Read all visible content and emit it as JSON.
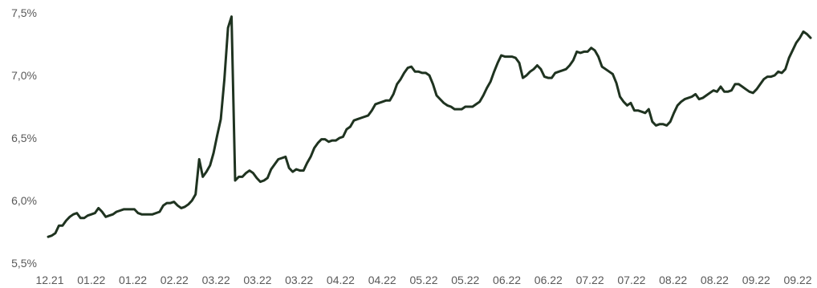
{
  "chart_data": {
    "type": "line",
    "title": "",
    "xlabel": "",
    "ylabel": "",
    "ylim": [
      5.5,
      7.5
    ],
    "y_ticks": [
      {
        "value": 5.5,
        "label": "5,5%"
      },
      {
        "value": 6.0,
        "label": "6,0%"
      },
      {
        "value": 6.5,
        "label": "6,5%"
      },
      {
        "value": 7.0,
        "label": "7,0%"
      },
      {
        "value": 7.5,
        "label": "7,5%"
      }
    ],
    "x_tick_labels": [
      "12.21",
      "01.22",
      "01.22",
      "02.22",
      "03.22",
      "03.22",
      "03.22",
      "04.22",
      "04.22",
      "05.22",
      "05.22",
      "06.22",
      "06.22",
      "07.22",
      "07.22",
      "08.22",
      "08.22",
      "09.22",
      "09.22"
    ],
    "grid": false,
    "legend": "none",
    "line_color": "#1f3320",
    "series": [
      {
        "values": [
          5.71,
          5.72,
          5.74,
          5.8,
          5.8,
          5.84,
          5.87,
          5.89,
          5.9,
          5.86,
          5.86,
          5.88,
          5.89,
          5.9,
          5.94,
          5.91,
          5.87,
          5.88,
          5.89,
          5.91,
          5.92,
          5.93,
          5.93,
          5.93,
          5.93,
          5.9,
          5.89,
          5.89,
          5.89,
          5.89,
          5.9,
          5.91,
          5.96,
          5.98,
          5.98,
          5.99,
          5.96,
          5.94,
          5.95,
          5.97,
          6.0,
          6.05,
          6.33,
          6.19,
          6.23,
          6.28,
          6.38,
          6.52,
          6.65,
          6.97,
          7.38,
          7.47,
          6.16,
          6.19,
          6.19,
          6.22,
          6.24,
          6.22,
          6.18,
          6.15,
          6.16,
          6.18,
          6.25,
          6.29,
          6.33,
          6.34,
          6.35,
          6.26,
          6.23,
          6.25,
          6.24,
          6.24,
          6.3,
          6.35,
          6.42,
          6.46,
          6.49,
          6.49,
          6.47,
          6.48,
          6.48,
          6.5,
          6.51,
          6.57,
          6.59,
          6.64,
          6.65,
          6.66,
          6.67,
          6.68,
          6.72,
          6.77,
          6.78,
          6.79,
          6.8,
          6.8,
          6.85,
          6.93,
          6.97,
          7.02,
          7.06,
          7.07,
          7.03,
          7.03,
          7.02,
          7.02,
          7.0,
          6.93,
          6.84,
          6.81,
          6.78,
          6.76,
          6.75,
          6.73,
          6.73,
          6.73,
          6.75,
          6.75,
          6.75,
          6.77,
          6.79,
          6.84,
          6.9,
          6.95,
          7.03,
          7.1,
          7.16,
          7.15,
          7.15,
          7.15,
          7.14,
          7.1,
          6.98,
          7.0,
          7.03,
          7.05,
          7.08,
          7.05,
          6.99,
          6.98,
          6.98,
          7.02,
          7.03,
          7.04,
          7.05,
          7.08,
          7.12,
          7.19,
          7.18,
          7.19,
          7.19,
          7.22,
          7.2,
          7.15,
          7.07,
          7.05,
          7.03,
          7.01,
          6.94,
          6.83,
          6.79,
          6.76,
          6.78,
          6.72,
          6.72,
          6.71,
          6.7,
          6.73,
          6.63,
          6.6,
          6.61,
          6.61,
          6.6,
          6.63,
          6.7,
          6.76,
          6.79,
          6.81,
          6.82,
          6.83,
          6.85,
          6.81,
          6.82,
          6.84,
          6.86,
          6.88,
          6.87,
          6.91,
          6.87,
          6.87,
          6.88,
          6.93,
          6.93,
          6.91,
          6.89,
          6.87,
          6.86,
          6.89,
          6.93,
          6.97,
          6.99,
          6.99,
          7.0,
          7.03,
          7.02,
          7.05,
          7.14,
          7.2,
          7.26,
          7.3,
          7.35,
          7.33,
          7.3
        ]
      }
    ]
  }
}
